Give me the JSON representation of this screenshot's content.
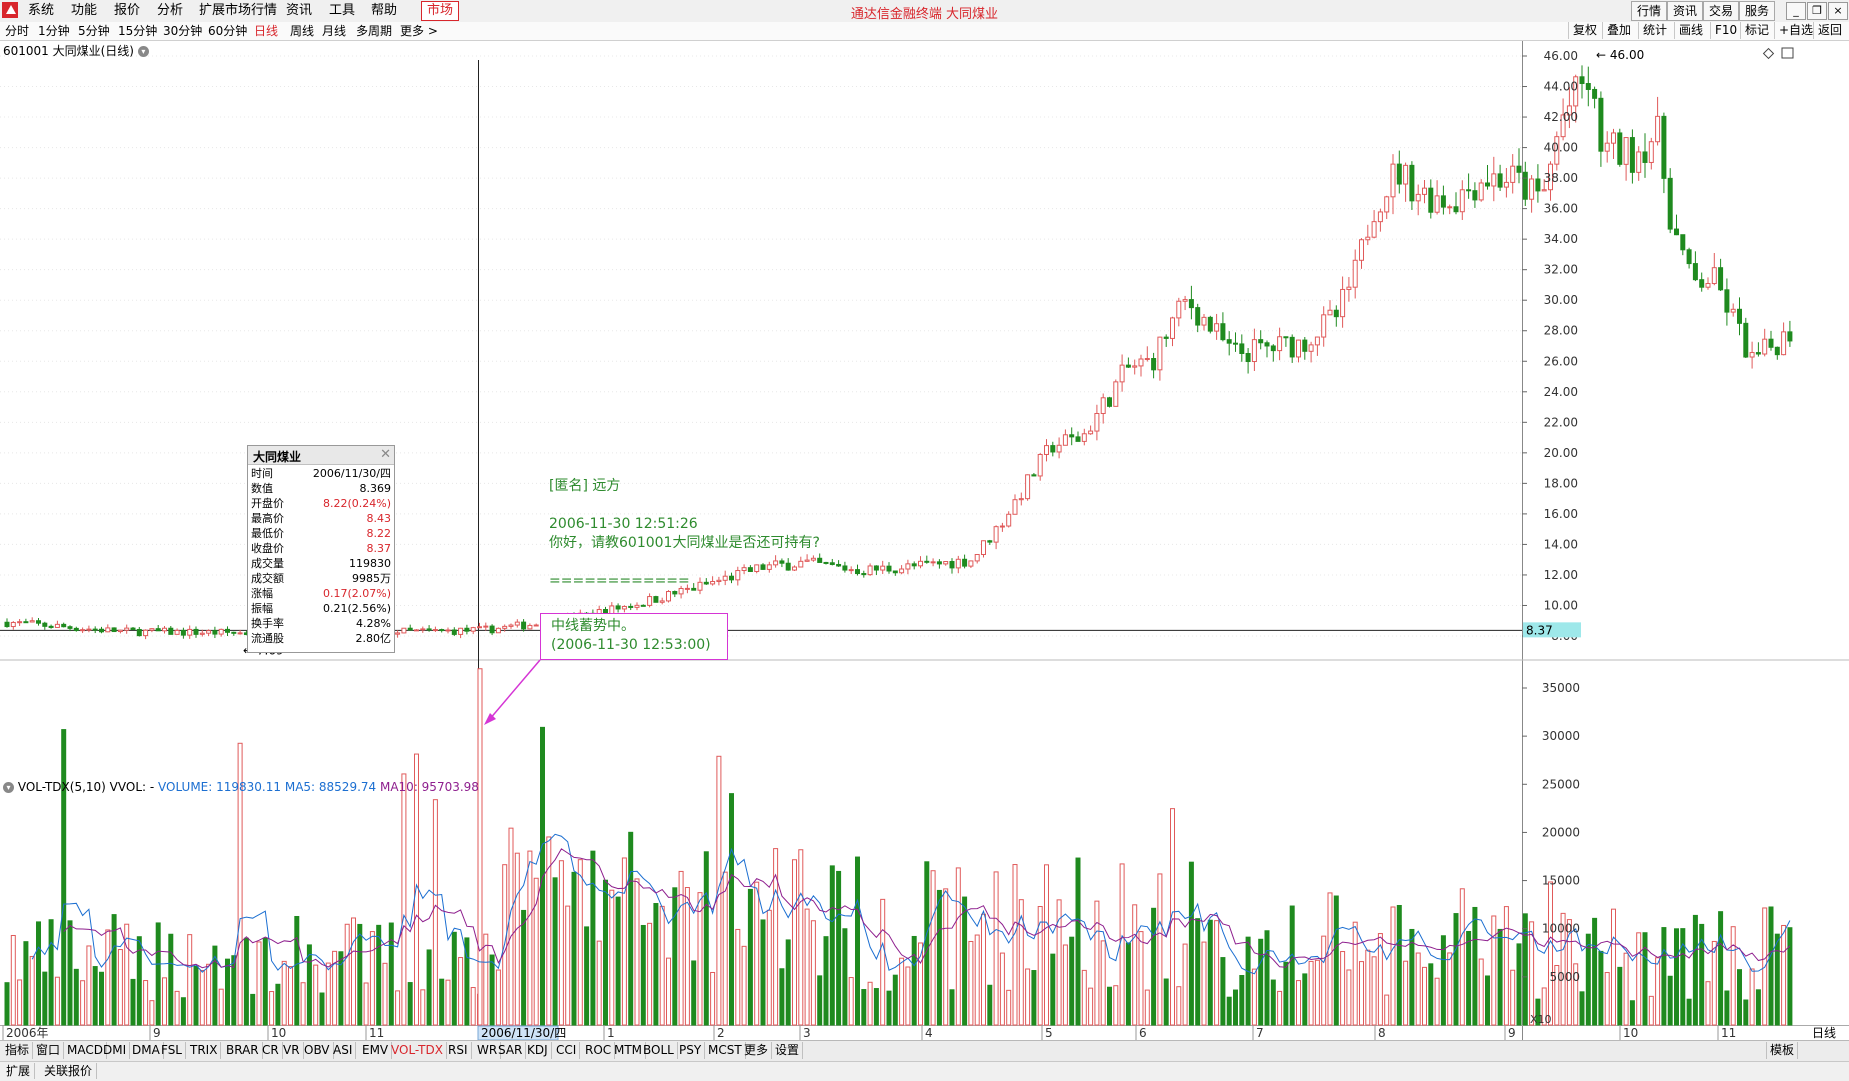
{
  "menu": {
    "items": [
      "系统",
      "功能",
      "报价",
      "分析",
      "扩展市场行情",
      "资讯",
      "工具",
      "帮助"
    ],
    "active_item": "市场",
    "title": "通达信金融终端  大同煤业",
    "right_buttons": [
      "行情",
      "资讯",
      "交易",
      "服务"
    ]
  },
  "periods": {
    "items": [
      "分时",
      "1分钟",
      "5分钟",
      "15分钟",
      "30分钟",
      "60分钟",
      "日线",
      "周线",
      "月线",
      "多周期",
      "更多 >"
    ],
    "active": "日线",
    "right_buttons": [
      "复权",
      "叠加",
      "统计",
      "画线",
      "F10",
      "标记",
      "+自选",
      "返回"
    ]
  },
  "stock": {
    "title": "601001 大同煤业(日线)"
  },
  "info_popup": {
    "title": "大同煤业",
    "rows": [
      {
        "label": "时间",
        "value": "2006/11/30/四",
        "red": false
      },
      {
        "label": "数值",
        "value": "8.369",
        "red": false
      },
      {
        "label": "开盘价",
        "value": "8.22(0.24%)",
        "red": true
      },
      {
        "label": "最高价",
        "value": "8.43",
        "red": true
      },
      {
        "label": "最低价",
        "value": "8.22",
        "red": true
      },
      {
        "label": "收盘价",
        "value": "8.37",
        "red": true
      },
      {
        "label": "成交量",
        "value": "119830",
        "red": false
      },
      {
        "label": "成交额",
        "value": "9985万",
        "red": false
      },
      {
        "label": "涨幅",
        "value": "0.17(2.07%)",
        "red": true
      },
      {
        "label": "振幅",
        "value": "0.21(2.56%)",
        "red": false
      },
      {
        "label": "换手率",
        "value": "4.28%",
        "red": false
      },
      {
        "label": "流通股",
        "value": "2.80亿",
        "red": false
      }
    ]
  },
  "annotation": {
    "author": "[匿名] 远方",
    "time": "2006-11-30 12:51:26",
    "question": "你好，请教601001大同煤业是否还可持有?",
    "separator": "============",
    "reply": "中线蓄势中。",
    "reply_time": "(2006-11-30 12:53:00)"
  },
  "price_axis": {
    "ticks": [
      "46.00",
      "44.00",
      "42.00",
      "40.00",
      "38.00",
      "36.00",
      "34.00",
      "32.00",
      "30.00",
      "28.00",
      "26.00",
      "24.00",
      "22.00",
      "20.00",
      "18.00",
      "16.00",
      "14.00",
      "12.00",
      "10.00",
      "8.00"
    ],
    "current_price": "8.37",
    "high_mark": "46.00",
    "low_mark": "7.69"
  },
  "volume": {
    "indicator": "VOL-TDX(5,10) VVOL: -",
    "volume_label": "VOLUME: 119830.11",
    "ma5_label": "MA5: 88529.74",
    "ma10_label": "MA10: 95703.98",
    "ticks": [
      "35000",
      "30000",
      "25000",
      "20000",
      "15000",
      "10000",
      "5000"
    ],
    "unit": "X10"
  },
  "date_axis": {
    "labels": [
      "2006年",
      "9",
      "10",
      "11",
      "1",
      "2",
      "3",
      "4",
      "5",
      "6",
      "7",
      "8",
      "9",
      "10",
      "11"
    ],
    "cursor_date": "2006/11/30/四",
    "right_label": "日线"
  },
  "colors": {
    "up": "#f08080",
    "down": "#1f8a1f",
    "ma5": "#1c6fd1",
    "ma10": "#8e1f8e",
    "accent": "#d8262c"
  },
  "bottom_tabs": {
    "items": [
      "指标",
      "窗口",
      "MACD",
      "DMI",
      "DMA",
      "FSL",
      "TRIX",
      "BRAR",
      "CR",
      "VR",
      "OBV",
      "ASI",
      "EMV",
      "VOL-TDX",
      "RSI",
      "WR",
      "SAR",
      "KDJ",
      "CCI",
      "ROC",
      "MTM",
      "BOLL",
      "PSY",
      "MCST",
      "更多",
      "设置"
    ],
    "active": "VOL-TDX",
    "right": "模板"
  },
  "status_tabs": [
    "扩展",
    "关联报价"
  ],
  "chart_data": {
    "type": "candlestick",
    "title": "601001 大同煤业(日线)",
    "ylim": [
      7.5,
      46.5
    ],
    "key_points": [
      {
        "date": "2006-08",
        "close": 8.9
      },
      {
        "date": "2006-11-30",
        "open": 8.22,
        "high": 8.43,
        "low": 8.22,
        "close": 8.37,
        "volume": 119830
      },
      {
        "date": "2007-03",
        "close": 12.5
      },
      {
        "date": "2007-05",
        "close": 20.0
      },
      {
        "date": "2007-06",
        "close": 30.0
      },
      {
        "date": "2007-07",
        "close": 26.5
      },
      {
        "date": "2007-08",
        "close": 38.0
      },
      {
        "date": "2007-10",
        "high": 46.0
      },
      {
        "date": "2007-11",
        "close": 26.0
      }
    ],
    "period_low": 7.69,
    "period_high": 46.0,
    "last_close": 8.37,
    "volume_ylim": [
      0,
      38000
    ],
    "volume_last": 119830.11,
    "ma5_last": 88529.74,
    "ma10_last": 95703.98
  }
}
